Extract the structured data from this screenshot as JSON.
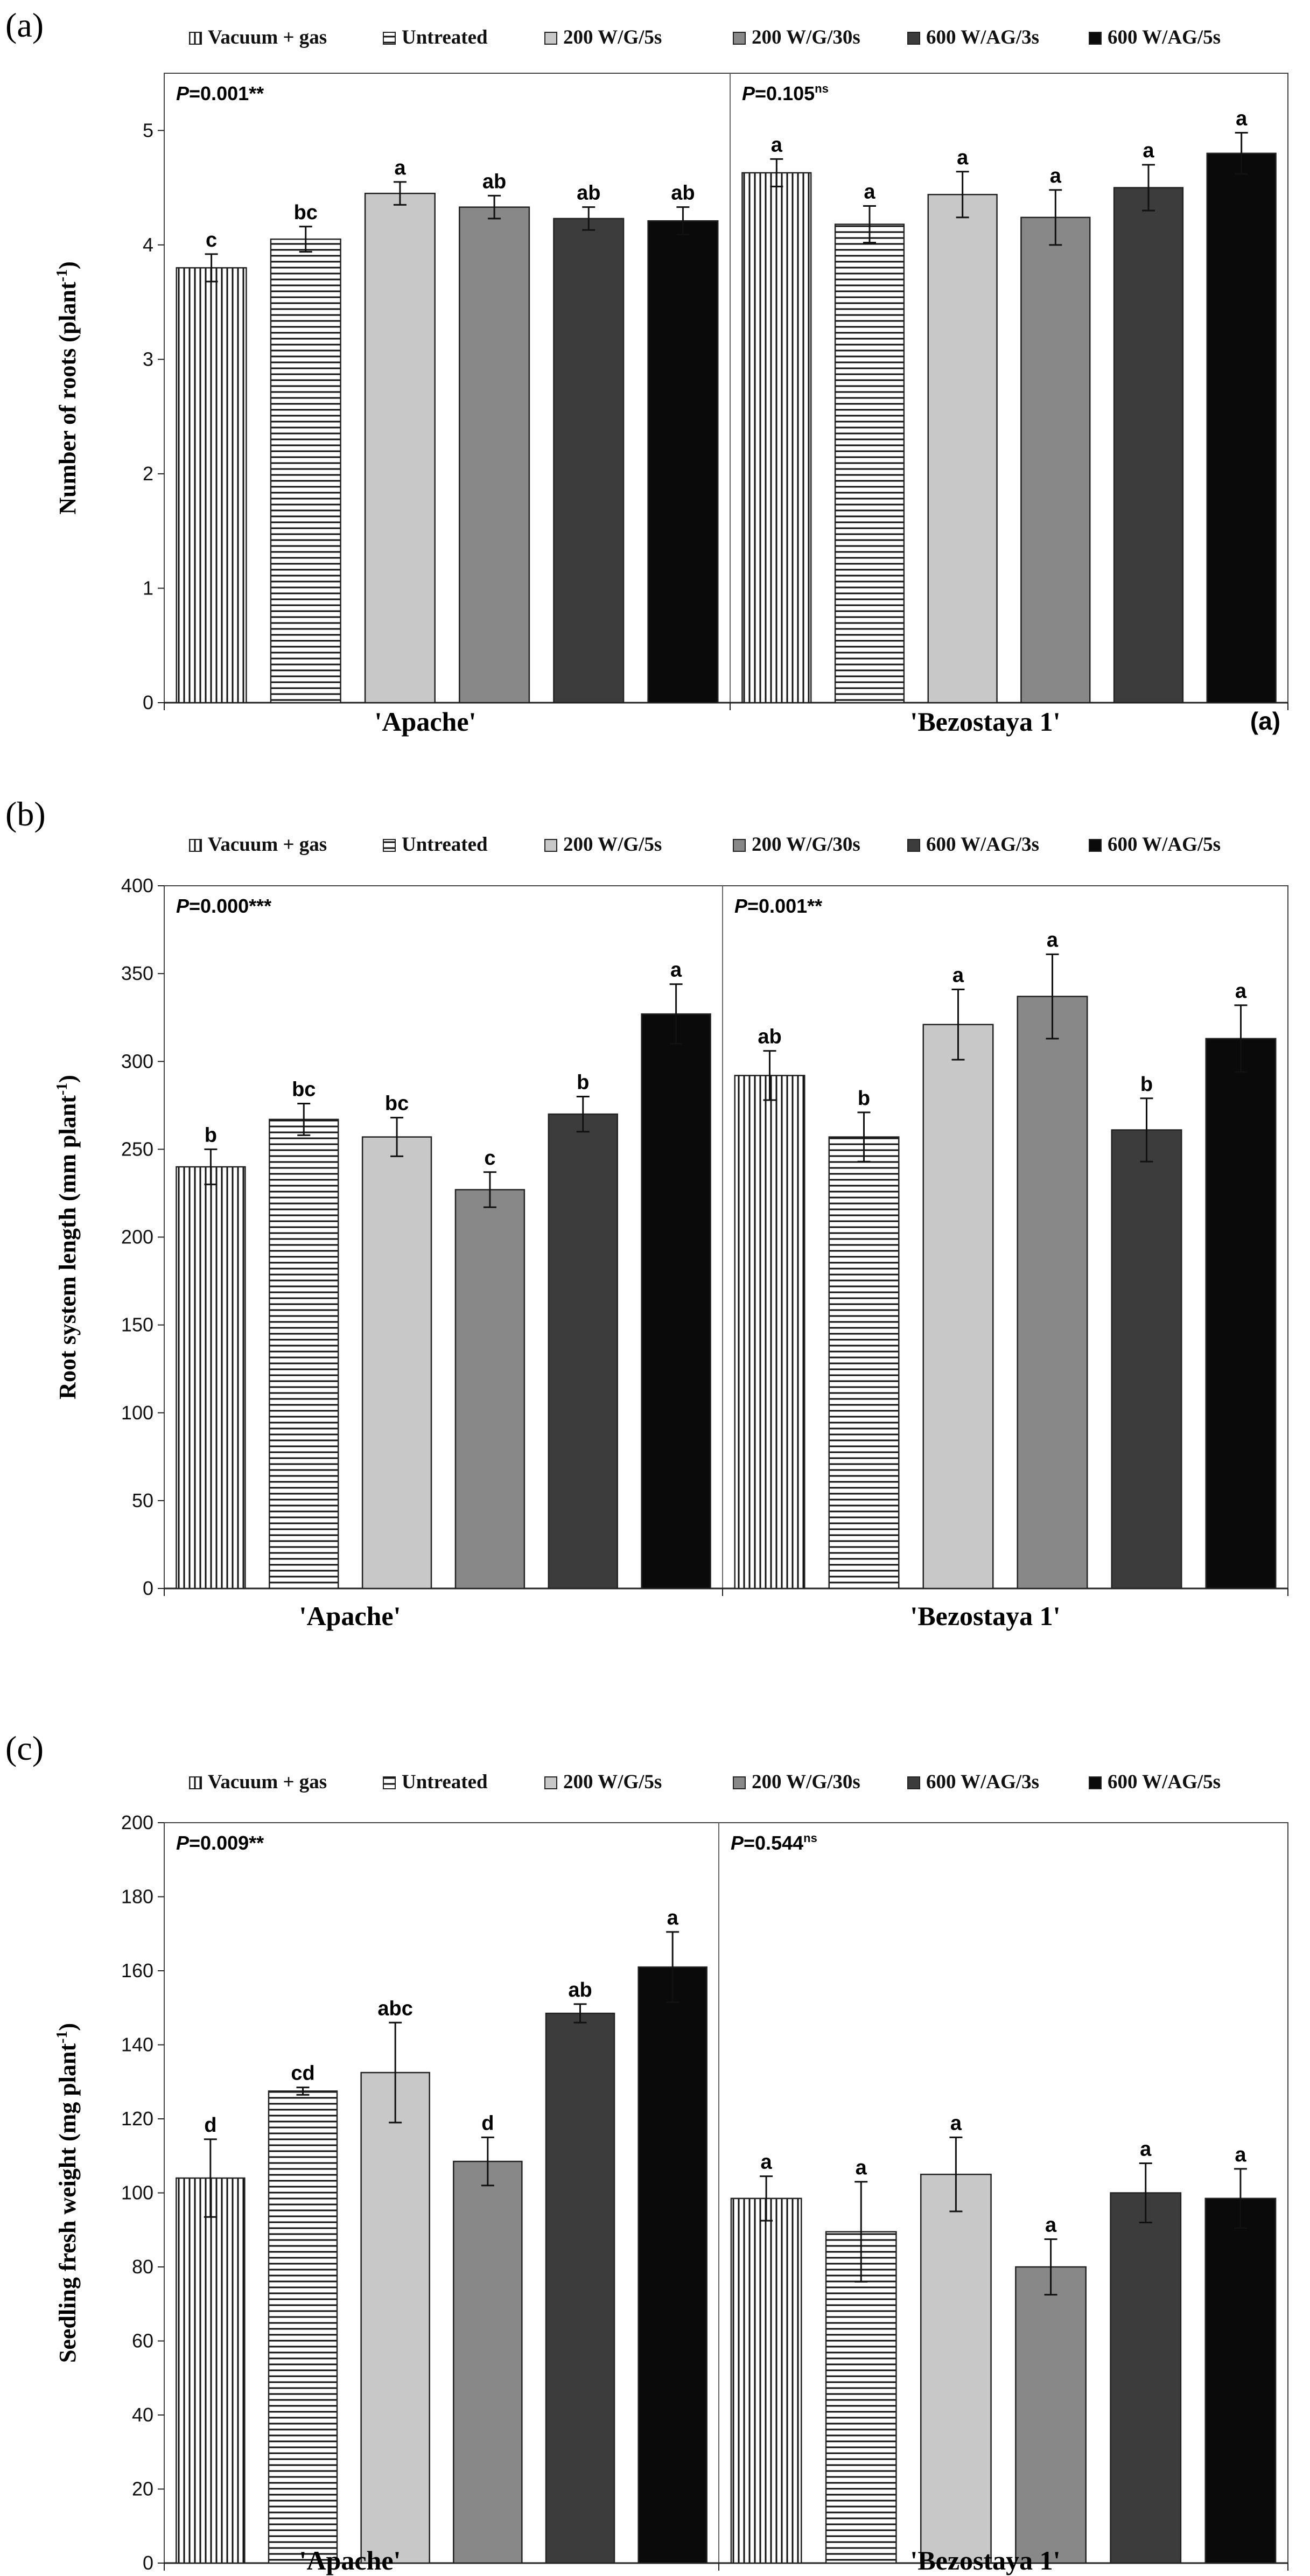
{
  "legend": {
    "entries": [
      "Vacuum + gas",
      "Untreated",
      "200 W/G/5s",
      "200 W/G/30s",
      "600 W/AG/3s",
      "600 W/AG/5s"
    ],
    "fills": [
      "vlines",
      "hlines",
      "#c8c8c8",
      "#888888",
      "#3c3c3c",
      "#0a0a0a"
    ]
  },
  "chart_data": [
    {
      "type": "bar",
      "panel_label": "(a)",
      "corner_label": "(a)",
      "ylabel_main": "Number of roots (plant",
      "ylabel_sup": "-1",
      "ylabel_end": ")",
      "ylim": [
        0,
        5.5
      ],
      "yticks": [
        "0",
        "1",
        "2",
        "3",
        "4",
        "5"
      ],
      "ytick_values": [
        0,
        1,
        2,
        3,
        4,
        5
      ],
      "groups": [
        {
          "name": "'Apache'",
          "p_label": "P",
          "p_value": "=0.001**",
          "p_sup": "",
          "values": [
            3.8,
            4.05,
            4.45,
            4.33,
            4.23,
            4.21
          ],
          "errors": [
            0.12,
            0.11,
            0.1,
            0.1,
            0.1,
            0.12
          ],
          "letters": [
            "c",
            "bc",
            "a",
            "ab",
            "ab",
            "ab"
          ]
        },
        {
          "name": "'Bezostaya 1'",
          "p_label": "P",
          "p_value": "=0.105",
          "p_sup": "ns",
          "values": [
            4.63,
            4.18,
            4.44,
            4.24,
            4.5,
            4.8
          ],
          "errors": [
            0.12,
            0.16,
            0.2,
            0.24,
            0.2,
            0.18
          ],
          "letters": [
            "a",
            "a",
            "a",
            "a",
            "a",
            "a"
          ]
        }
      ]
    },
    {
      "type": "bar",
      "panel_label": "(b)",
      "corner_label": "",
      "ylabel_main": "Root system length (mm plant",
      "ylabel_sup": "-1",
      "ylabel_end": ")",
      "ylim": [
        0,
        400
      ],
      "yticks": [
        "0",
        "50",
        "100",
        "150",
        "200",
        "250",
        "300",
        "350",
        "400"
      ],
      "ytick_values": [
        0,
        50,
        100,
        150,
        200,
        250,
        300,
        350,
        400
      ],
      "groups": [
        {
          "name": "'Apache'",
          "p_label": "P",
          "p_value": "=0.000***",
          "p_sup": "",
          "values": [
            240,
            267,
            257,
            227,
            270,
            327
          ],
          "errors": [
            10,
            9,
            11,
            10,
            10,
            17
          ],
          "letters": [
            "b",
            "bc",
            "bc",
            "c",
            "b",
            "a"
          ]
        },
        {
          "name": "'Bezostaya 1'",
          "p_label": "P",
          "p_value": "=0.001**",
          "p_sup": "",
          "values": [
            292,
            257,
            321,
            337,
            261,
            313
          ],
          "errors": [
            14,
            14,
            20,
            24,
            18,
            19
          ],
          "letters": [
            "ab",
            "b",
            "a",
            "a",
            "b",
            "a"
          ]
        }
      ]
    },
    {
      "type": "bar",
      "panel_label": "(c)",
      "corner_label": "",
      "ylabel_main": "Seedling fresh weight (mg plant",
      "ylabel_sup": "-1",
      "ylabel_end": ")",
      "ylim": [
        0,
        200
      ],
      "yticks": [
        "0",
        "20",
        "40",
        "60",
        "80",
        "100",
        "120",
        "140",
        "160",
        "180",
        "200"
      ],
      "ytick_values": [
        0,
        20,
        40,
        60,
        80,
        100,
        120,
        140,
        160,
        180,
        200
      ],
      "groups": [
        {
          "name": "'Apache'",
          "p_label": "P",
          "p_value": "=0.009**",
          "p_sup": "",
          "values": [
            104,
            127.5,
            132.5,
            108.5,
            148.5,
            161
          ],
          "errors": [
            10.5,
            1,
            13.5,
            6.5,
            2.5,
            9.5
          ],
          "letters": [
            "d",
            "cd",
            "abc",
            "d",
            "ab",
            "a"
          ]
        },
        {
          "name": "'Bezostaya 1'",
          "p_label": "P",
          "p_value": "=0.544",
          "p_sup": "ns",
          "values": [
            98.5,
            89.5,
            105,
            80,
            100,
            98.5
          ],
          "errors": [
            6,
            13.5,
            10,
            7.5,
            8,
            8
          ],
          "letters": [
            "a",
            "a",
            "a",
            "a",
            "a",
            "a"
          ]
        }
      ]
    }
  ]
}
